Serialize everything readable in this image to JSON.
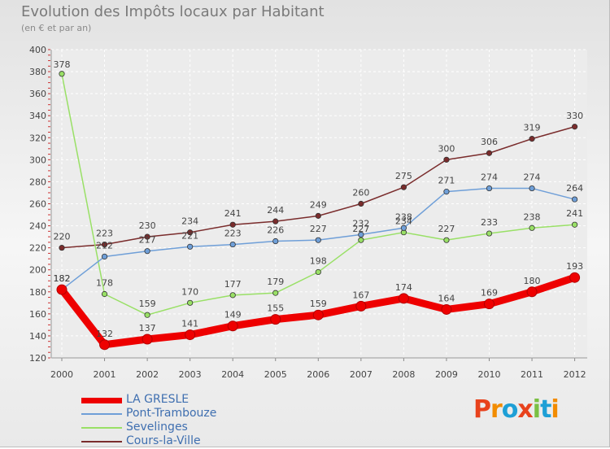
{
  "chart_data": {
    "type": "line",
    "title": "Evolution des Impôts locaux par Habitant",
    "subtitle": "(en € et par an)",
    "xlabel": "",
    "ylabel": "",
    "x": [
      "2000",
      "2001",
      "2002",
      "2003",
      "2004",
      "2005",
      "2006",
      "2007",
      "2008",
      "2009",
      "2010",
      "2011",
      "2012"
    ],
    "ylim": [
      120,
      400
    ],
    "yticks": [
      120,
      140,
      160,
      180,
      200,
      220,
      240,
      260,
      280,
      300,
      320,
      340,
      360,
      380,
      400
    ],
    "grid": true,
    "legend_position": "bottom-left",
    "series": [
      {
        "name": "LA GRESLE",
        "color": "#ee0000",
        "values": [
          182,
          132,
          137,
          141,
          149,
          155,
          159,
          167,
          174,
          164,
          169,
          180,
          193
        ]
      },
      {
        "name": "Pont-Trambouze",
        "color": "#6f9fd8",
        "values": [
          182,
          212,
          217,
          221,
          223,
          226,
          227,
          232,
          238,
          271,
          274,
          274,
          264
        ]
      },
      {
        "name": "Sevelinges",
        "color": "#99e066",
        "values": [
          378,
          178,
          159,
          170,
          177,
          179,
          198,
          227,
          234,
          227,
          233,
          238,
          241
        ]
      },
      {
        "name": "Cours-la-Ville",
        "color": "#7a2c2c",
        "values": [
          220,
          223,
          230,
          234,
          241,
          244,
          249,
          260,
          275,
          300,
          306,
          319,
          330
        ]
      }
    ]
  },
  "branding": {
    "logo_text": "Proxiti"
  }
}
